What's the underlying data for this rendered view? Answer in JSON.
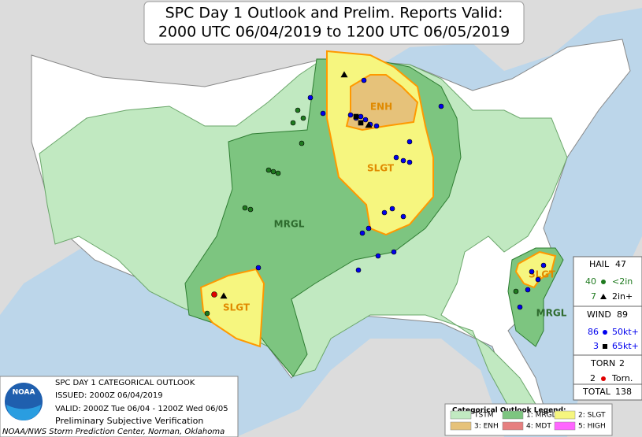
{
  "title": [
    "SPC Day 1 Outlook and Prelim. Reports Valid:",
    "2000 UTC 06/04/2019 to 1200 UTC 06/05/2019"
  ],
  "risk_labels": [
    "ENH",
    "SLGT",
    "MRGL",
    "SLGT",
    "SLGT",
    "MRGL"
  ],
  "reports": {
    "hail": {
      "label": "HAIL",
      "total": 47,
      "rows": [
        {
          "count": 40,
          "label": "<2in"
        },
        {
          "count": 7,
          "label": "2in+"
        }
      ]
    },
    "wind": {
      "label": "WIND",
      "total": 89,
      "rows": [
        {
          "count": 86,
          "label": "50kt+"
        },
        {
          "count": 3,
          "label": "65kt+"
        }
      ]
    },
    "torn": {
      "label": "TORN",
      "total": 2,
      "rows": [
        {
          "count": 2,
          "label": "Torn."
        }
      ]
    },
    "total": {
      "label": "TOTAL",
      "value": 138
    }
  },
  "info": {
    "logo": "NOAA",
    "lines": [
      "SPC DAY 1 CATEGORICAL OUTLOOK",
      "ISSUED: 2000Z 06/04/2019",
      "VALID: 2000Z Tue 06/04 - 1200Z Wed 06/05",
      "Preliminary Subjective Verification"
    ],
    "footer": "NOAA/NWS Storm Prediction Center, Norman, Oklahoma"
  },
  "legend": {
    "title": "Categorical Outlook Legend:",
    "items": [
      {
        "label": "TSTM",
        "color": "#c1e9c1"
      },
      {
        "label": "3: ENH",
        "color": "#e6c27a"
      },
      {
        "label": "1: MRGL",
        "color": "#7dc580"
      },
      {
        "label": "4: MDT",
        "color": "#e67f7f"
      },
      {
        "label": "2: SLGT",
        "color": "#f6f67f"
      },
      {
        "label": "5: HIGH",
        "color": "#ff66ff"
      }
    ]
  }
}
